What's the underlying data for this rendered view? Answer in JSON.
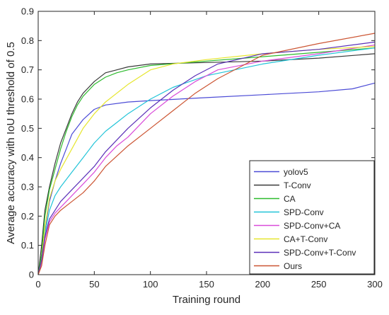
{
  "chart_data": {
    "type": "line",
    "title": "",
    "xlabel": "Training round",
    "ylabel": "Average accuracy with IoU threshold of 0.5",
    "xlim": [
      0,
      300
    ],
    "ylim": [
      0,
      0.9
    ],
    "xticks": [
      "0",
      "50",
      "100",
      "150",
      "200",
      "250",
      "300"
    ],
    "yticks": [
      "0",
      "0.1",
      "0.2",
      "0.3",
      "0.4",
      "0.5",
      "0.6",
      "0.7",
      "0.8",
      "0.9"
    ],
    "grid": false,
    "legend_position": "bottom-right",
    "series": [
      {
        "name": "yolov5",
        "color": "#4b4bd6",
        "x": [
          0,
          3,
          6,
          10,
          15,
          20,
          25,
          30,
          40,
          50,
          60,
          80,
          100,
          150,
          200,
          250,
          280,
          300
        ],
        "y": [
          0,
          0.05,
          0.15,
          0.25,
          0.32,
          0.38,
          0.43,
          0.48,
          0.53,
          0.565,
          0.58,
          0.59,
          0.595,
          0.605,
          0.615,
          0.625,
          0.635,
          0.655
        ]
      },
      {
        "name": "T-Conv",
        "color": "#3a3a3a",
        "x": [
          0,
          3,
          6,
          10,
          15,
          20,
          25,
          30,
          35,
          40,
          50,
          60,
          70,
          80,
          100,
          150,
          200,
          250,
          300
        ],
        "y": [
          0,
          0.1,
          0.22,
          0.3,
          0.38,
          0.45,
          0.5,
          0.55,
          0.59,
          0.62,
          0.66,
          0.69,
          0.7,
          0.71,
          0.72,
          0.725,
          0.73,
          0.74,
          0.755
        ]
      },
      {
        "name": "CA",
        "color": "#2dbb2d",
        "x": [
          0,
          3,
          6,
          10,
          15,
          20,
          25,
          30,
          35,
          40,
          50,
          60,
          70,
          80,
          100,
          150,
          200,
          250,
          300
        ],
        "y": [
          0,
          0.07,
          0.2,
          0.29,
          0.36,
          0.43,
          0.49,
          0.54,
          0.58,
          0.61,
          0.65,
          0.675,
          0.69,
          0.7,
          0.715,
          0.73,
          0.745,
          0.76,
          0.775
        ]
      },
      {
        "name": "SPD-Conv",
        "color": "#22c4d8",
        "x": [
          0,
          3,
          6,
          10,
          15,
          20,
          30,
          40,
          50,
          60,
          70,
          80,
          100,
          120,
          150,
          200,
          250,
          300
        ],
        "y": [
          0,
          0.05,
          0.14,
          0.22,
          0.27,
          0.3,
          0.35,
          0.4,
          0.45,
          0.49,
          0.52,
          0.55,
          0.6,
          0.64,
          0.68,
          0.72,
          0.75,
          0.775
        ]
      },
      {
        "name": "SPD-Conv+CA",
        "color": "#d94bd9",
        "x": [
          0,
          3,
          6,
          10,
          15,
          20,
          30,
          40,
          50,
          60,
          70,
          80,
          100,
          120,
          140,
          160,
          200,
          250,
          300
        ],
        "y": [
          0,
          0.04,
          0.12,
          0.18,
          0.21,
          0.23,
          0.27,
          0.31,
          0.35,
          0.4,
          0.44,
          0.47,
          0.55,
          0.61,
          0.66,
          0.7,
          0.73,
          0.755,
          0.785
        ]
      },
      {
        "name": "CA+T-Conv",
        "color": "#e6e62e",
        "x": [
          0,
          3,
          6,
          10,
          15,
          20,
          30,
          40,
          50,
          60,
          70,
          80,
          100,
          120,
          150,
          200,
          250,
          300
        ],
        "y": [
          0,
          0.05,
          0.16,
          0.26,
          0.32,
          0.36,
          0.43,
          0.5,
          0.55,
          0.59,
          0.62,
          0.65,
          0.7,
          0.72,
          0.735,
          0.755,
          0.77,
          0.78
        ]
      },
      {
        "name": "SPD-Conv+T-Conv",
        "color": "#5a2fb8",
        "x": [
          0,
          3,
          6,
          10,
          15,
          20,
          30,
          40,
          50,
          60,
          80,
          100,
          120,
          140,
          160,
          200,
          250,
          300
        ],
        "y": [
          0,
          0.05,
          0.13,
          0.19,
          0.22,
          0.25,
          0.29,
          0.33,
          0.37,
          0.42,
          0.5,
          0.57,
          0.63,
          0.68,
          0.72,
          0.755,
          0.77,
          0.795
        ]
      },
      {
        "name": "Ours",
        "color": "#cc5533",
        "x": [
          0,
          3,
          6,
          10,
          15,
          20,
          30,
          40,
          50,
          60,
          80,
          100,
          120,
          140,
          160,
          180,
          200,
          250,
          300
        ],
        "y": [
          0,
          0.03,
          0.1,
          0.17,
          0.2,
          0.22,
          0.25,
          0.28,
          0.32,
          0.37,
          0.44,
          0.5,
          0.56,
          0.62,
          0.67,
          0.71,
          0.75,
          0.79,
          0.825
        ]
      }
    ]
  }
}
